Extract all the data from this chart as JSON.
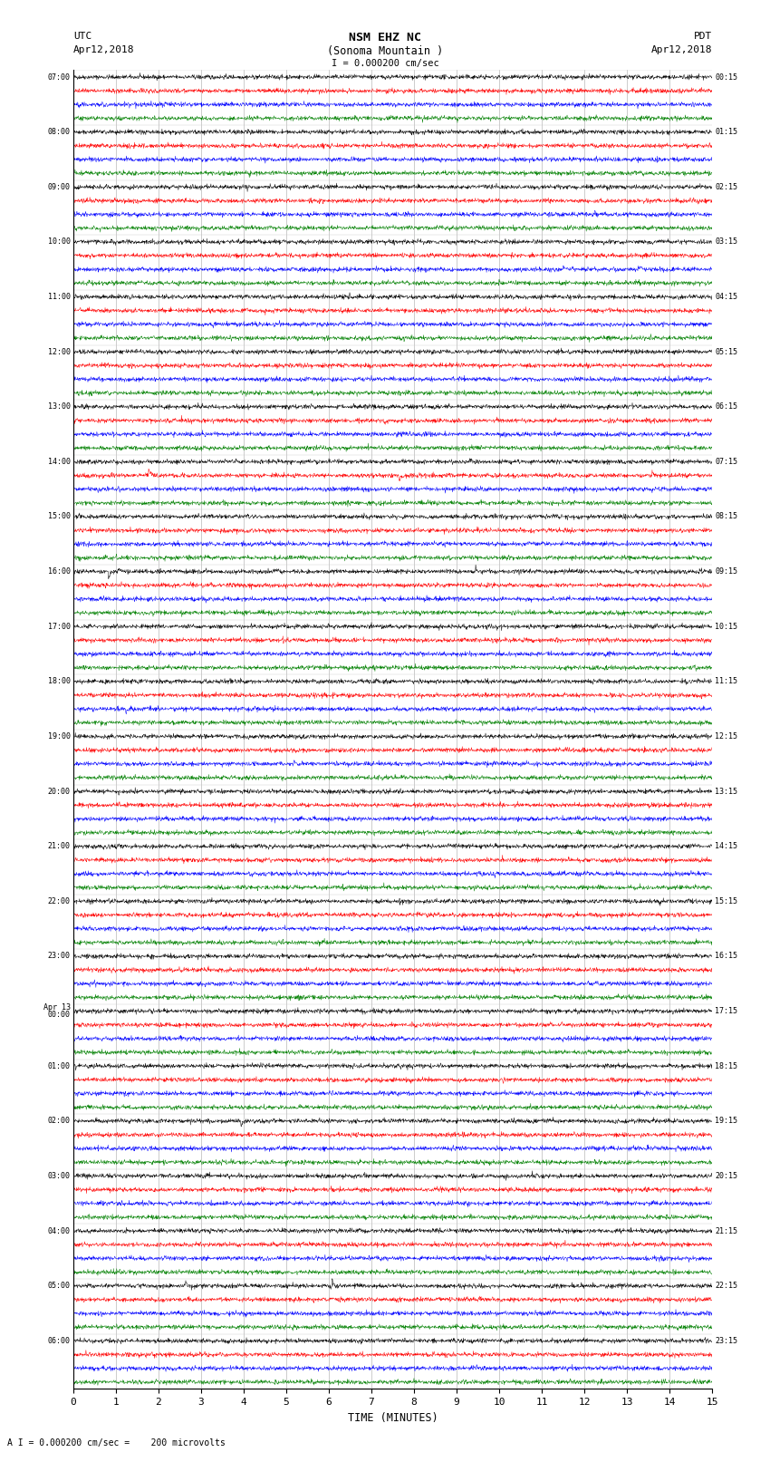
{
  "title_line1": "NSM EHZ NC",
  "title_line2": "(Sonoma Mountain )",
  "scale_label": "I = 0.000200 cm/sec",
  "footer_label": "A I = 0.000200 cm/sec =    200 microvolts",
  "left_header_line1": "UTC",
  "left_header_line2": "Apr12,2018",
  "right_header_line1": "PDT",
  "right_header_line2": "Apr12,2018",
  "xlabel": "TIME (MINUTES)",
  "xmin": 0,
  "xmax": 15,
  "xticks": [
    0,
    1,
    2,
    3,
    4,
    5,
    6,
    7,
    8,
    9,
    10,
    11,
    12,
    13,
    14,
    15
  ],
  "left_times": [
    "07:00",
    "08:00",
    "09:00",
    "10:00",
    "11:00",
    "12:00",
    "13:00",
    "14:00",
    "15:00",
    "16:00",
    "17:00",
    "18:00",
    "19:00",
    "20:00",
    "21:00",
    "22:00",
    "23:00",
    "Apr 13\n00:00",
    "01:00",
    "02:00",
    "03:00",
    "04:00",
    "05:00",
    "06:00"
  ],
  "right_times": [
    "00:15",
    "01:15",
    "02:15",
    "03:15",
    "04:15",
    "05:15",
    "06:15",
    "07:15",
    "08:15",
    "09:15",
    "10:15",
    "11:15",
    "12:15",
    "13:15",
    "14:15",
    "15:15",
    "16:15",
    "17:15",
    "18:15",
    "19:15",
    "20:15",
    "21:15",
    "22:15",
    "23:15"
  ],
  "n_hour_rows": 24,
  "traces_per_hour": 4,
  "trace_colors": [
    "black",
    "red",
    "blue",
    "green"
  ],
  "noise_seed": 42,
  "bg_color": "white",
  "fig_width": 8.5,
  "fig_height": 16.13,
  "dpi": 100,
  "trace_amplitude": 0.32,
  "spike_prob": 0.12,
  "n_points": 2000
}
